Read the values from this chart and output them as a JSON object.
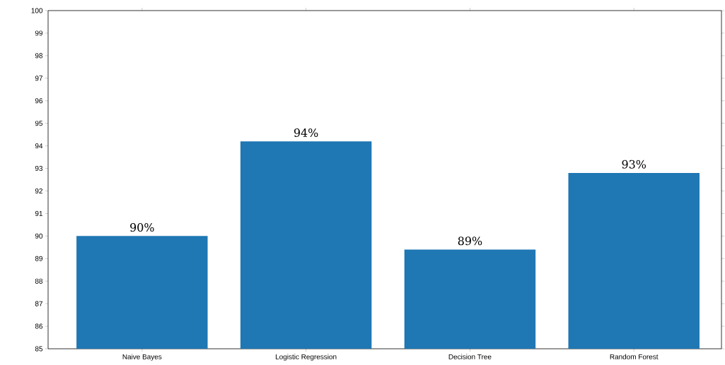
{
  "chart_data": {
    "type": "bar",
    "categories": [
      "Naive Bayes",
      "Logistic Regression",
      "Decision Tree",
      "Random Forest"
    ],
    "values": [
      90.0,
      94.2,
      89.4,
      92.8
    ],
    "value_labels": [
      "90%",
      "94%",
      "89%",
      "93%"
    ],
    "color": "#1f77b4",
    "ylim": [
      85,
      100
    ],
    "yticks": [
      85,
      86,
      87,
      88,
      89,
      90,
      91,
      92,
      93,
      94,
      95,
      96,
      97,
      98,
      99,
      100
    ],
    "grid": false
  }
}
